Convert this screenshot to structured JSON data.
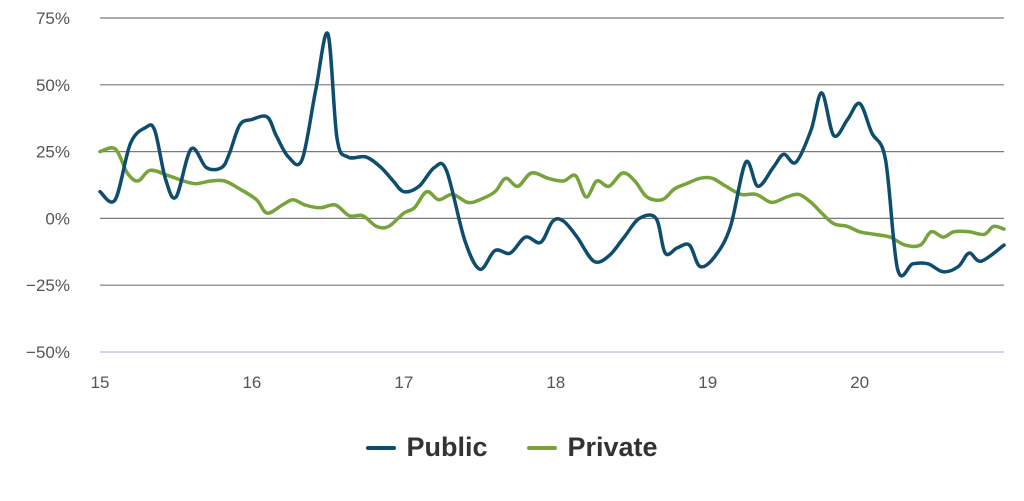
{
  "chart_data": {
    "type": "line",
    "title": "",
    "xlabel": "",
    "ylabel": "",
    "x_ticks": [
      "15",
      "16",
      "17",
      "18",
      "19",
      "20"
    ],
    "y_ticks": [
      "75%",
      "50%",
      "25%",
      "0%",
      "−25%",
      "−50%"
    ],
    "xlim": [
      15,
      20.95
    ],
    "ylim": [
      -50,
      75
    ],
    "grid": "horizontal",
    "legend_position": "bottom-center",
    "series": [
      {
        "name": "Public",
        "color": "#0e4d6e",
        "points": [
          [
            15.0,
            10
          ],
          [
            15.1,
            7
          ],
          [
            15.2,
            28
          ],
          [
            15.3,
            34
          ],
          [
            15.36,
            33
          ],
          [
            15.43,
            15
          ],
          [
            15.5,
            8
          ],
          [
            15.6,
            26
          ],
          [
            15.7,
            19
          ],
          [
            15.8,
            19
          ],
          [
            15.85,
            24
          ],
          [
            15.92,
            35
          ],
          [
            16.0,
            37
          ],
          [
            16.1,
            38
          ],
          [
            16.16,
            31
          ],
          [
            16.24,
            23
          ],
          [
            16.33,
            22
          ],
          [
            16.42,
            48
          ],
          [
            16.5,
            69
          ],
          [
            16.56,
            30
          ],
          [
            16.63,
            23
          ],
          [
            16.75,
            23
          ],
          [
            16.85,
            19
          ],
          [
            16.93,
            14
          ],
          [
            17.0,
            10
          ],
          [
            17.1,
            12
          ],
          [
            17.2,
            19
          ],
          [
            17.28,
            18
          ],
          [
            17.4,
            -8
          ],
          [
            17.5,
            -19
          ],
          [
            17.6,
            -12
          ],
          [
            17.7,
            -13
          ],
          [
            17.8,
            -7
          ],
          [
            17.9,
            -9
          ],
          [
            17.98,
            -1
          ],
          [
            18.05,
            -1
          ],
          [
            18.14,
            -7
          ],
          [
            18.25,
            -16
          ],
          [
            18.35,
            -14
          ],
          [
            18.45,
            -7
          ],
          [
            18.55,
            0
          ],
          [
            18.66,
            0
          ],
          [
            18.72,
            -13
          ],
          [
            18.8,
            -11
          ],
          [
            18.88,
            -10
          ],
          [
            18.95,
            -18
          ],
          [
            19.05,
            -14
          ],
          [
            19.15,
            -3
          ],
          [
            19.25,
            21
          ],
          [
            19.33,
            12
          ],
          [
            19.43,
            19
          ],
          [
            19.5,
            24
          ],
          [
            19.58,
            21
          ],
          [
            19.68,
            33
          ],
          [
            19.75,
            47
          ],
          [
            19.83,
            31
          ],
          [
            19.92,
            37
          ],
          [
            20.0,
            43
          ],
          [
            20.08,
            32
          ],
          [
            20.17,
            22
          ],
          [
            20.25,
            -19
          ],
          [
            20.35,
            -17
          ],
          [
            20.45,
            -17
          ],
          [
            20.55,
            -20
          ],
          [
            20.65,
            -18
          ],
          [
            20.72,
            -13
          ],
          [
            20.8,
            -16
          ],
          [
            20.95,
            -10
          ]
        ]
      },
      {
        "name": "Private",
        "color": "#76a33a",
        "points": [
          [
            15.0,
            25
          ],
          [
            15.1,
            26
          ],
          [
            15.18,
            17
          ],
          [
            15.25,
            14
          ],
          [
            15.33,
            18
          ],
          [
            15.45,
            16
          ],
          [
            15.55,
            14
          ],
          [
            15.63,
            13
          ],
          [
            15.73,
            14
          ],
          [
            15.82,
            14
          ],
          [
            15.92,
            11
          ],
          [
            16.03,
            7
          ],
          [
            16.1,
            2
          ],
          [
            16.2,
            5
          ],
          [
            16.27,
            7
          ],
          [
            16.35,
            5
          ],
          [
            16.45,
            4
          ],
          [
            16.55,
            5
          ],
          [
            16.64,
            1
          ],
          [
            16.73,
            1
          ],
          [
            16.82,
            -3
          ],
          [
            16.9,
            -3
          ],
          [
            17.0,
            2
          ],
          [
            17.07,
            4
          ],
          [
            17.15,
            10
          ],
          [
            17.23,
            7
          ],
          [
            17.32,
            9
          ],
          [
            17.42,
            6
          ],
          [
            17.5,
            7
          ],
          [
            17.6,
            10
          ],
          [
            17.67,
            15
          ],
          [
            17.75,
            12
          ],
          [
            17.84,
            17
          ],
          [
            17.95,
            15
          ],
          [
            18.05,
            14
          ],
          [
            18.13,
            16
          ],
          [
            18.2,
            8
          ],
          [
            18.27,
            14
          ],
          [
            18.35,
            12
          ],
          [
            18.44,
            17
          ],
          [
            18.52,
            14
          ],
          [
            18.6,
            8
          ],
          [
            18.7,
            7
          ],
          [
            18.78,
            11
          ],
          [
            18.86,
            13
          ],
          [
            18.95,
            15
          ],
          [
            19.03,
            15
          ],
          [
            19.12,
            12
          ],
          [
            19.22,
            9
          ],
          [
            19.32,
            9
          ],
          [
            19.42,
            6
          ],
          [
            19.52,
            8
          ],
          [
            19.6,
            9
          ],
          [
            19.68,
            6
          ],
          [
            19.75,
            2
          ],
          [
            19.83,
            -2
          ],
          [
            19.92,
            -3
          ],
          [
            20.0,
            -5
          ],
          [
            20.1,
            -6
          ],
          [
            20.2,
            -7
          ],
          [
            20.3,
            -10
          ],
          [
            20.4,
            -10
          ],
          [
            20.47,
            -5
          ],
          [
            20.55,
            -7
          ],
          [
            20.62,
            -5
          ],
          [
            20.72,
            -5
          ],
          [
            20.82,
            -6
          ],
          [
            20.88,
            -3
          ],
          [
            20.95,
            -4
          ]
        ]
      }
    ]
  },
  "legend": {
    "items": [
      {
        "label": "Public",
        "color": "#0e4d6e"
      },
      {
        "label": "Private",
        "color": "#76a33a"
      }
    ]
  },
  "colors": {
    "grid": "#7a7a7a",
    "baseline": "#c7c2dd",
    "tick_text": "#555555"
  }
}
